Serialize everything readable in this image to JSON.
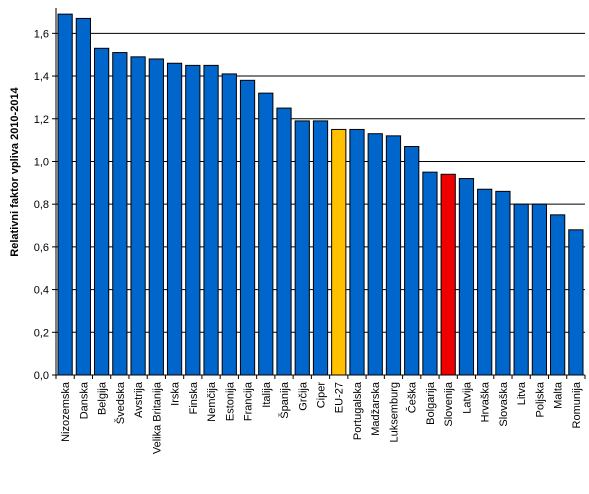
{
  "chart_data": {
    "type": "bar",
    "ylabel": "Relativni faktor vpliva 2010-2014",
    "ylim": [
      0,
      1.7
    ],
    "yticks": [
      "0,0",
      "0,2",
      "0,4",
      "0,6",
      "0,8",
      "1,0",
      "1,2",
      "1,4",
      "1,6"
    ],
    "grid": true,
    "categories": [
      "Nizozemska",
      "Danska",
      "Belgija",
      "Švedska",
      "Avstrija",
      "Velika Britanija",
      "Irska",
      "Finska",
      "Nemčija",
      "Estonija",
      "Francija",
      "Italija",
      "Španija",
      "Grčija",
      "Ciper",
      "EU-27",
      "Portugalska",
      "Madžarska",
      "Luksemburg",
      "Češka",
      "Bolgarija",
      "Slovenija",
      "Latvija",
      "Hrvaška",
      "Slovaška",
      "Litva",
      "Poljska",
      "Malta",
      "Romunija"
    ],
    "values": [
      1.69,
      1.67,
      1.53,
      1.51,
      1.49,
      1.48,
      1.46,
      1.45,
      1.45,
      1.41,
      1.38,
      1.32,
      1.25,
      1.19,
      1.19,
      1.15,
      1.15,
      1.13,
      1.12,
      1.07,
      0.95,
      0.94,
      0.92,
      0.87,
      0.86,
      0.8,
      0.8,
      0.75,
      0.68
    ],
    "colors": {
      "default": "#0066cc",
      "highlight_eu": "#ffc000",
      "highlight_slovenia": "#ee0000",
      "outline": "#000000",
      "grid": "#000000"
    },
    "highlights": {
      "EU-27": "highlight_eu",
      "Slovenija": "highlight_slovenia"
    }
  }
}
